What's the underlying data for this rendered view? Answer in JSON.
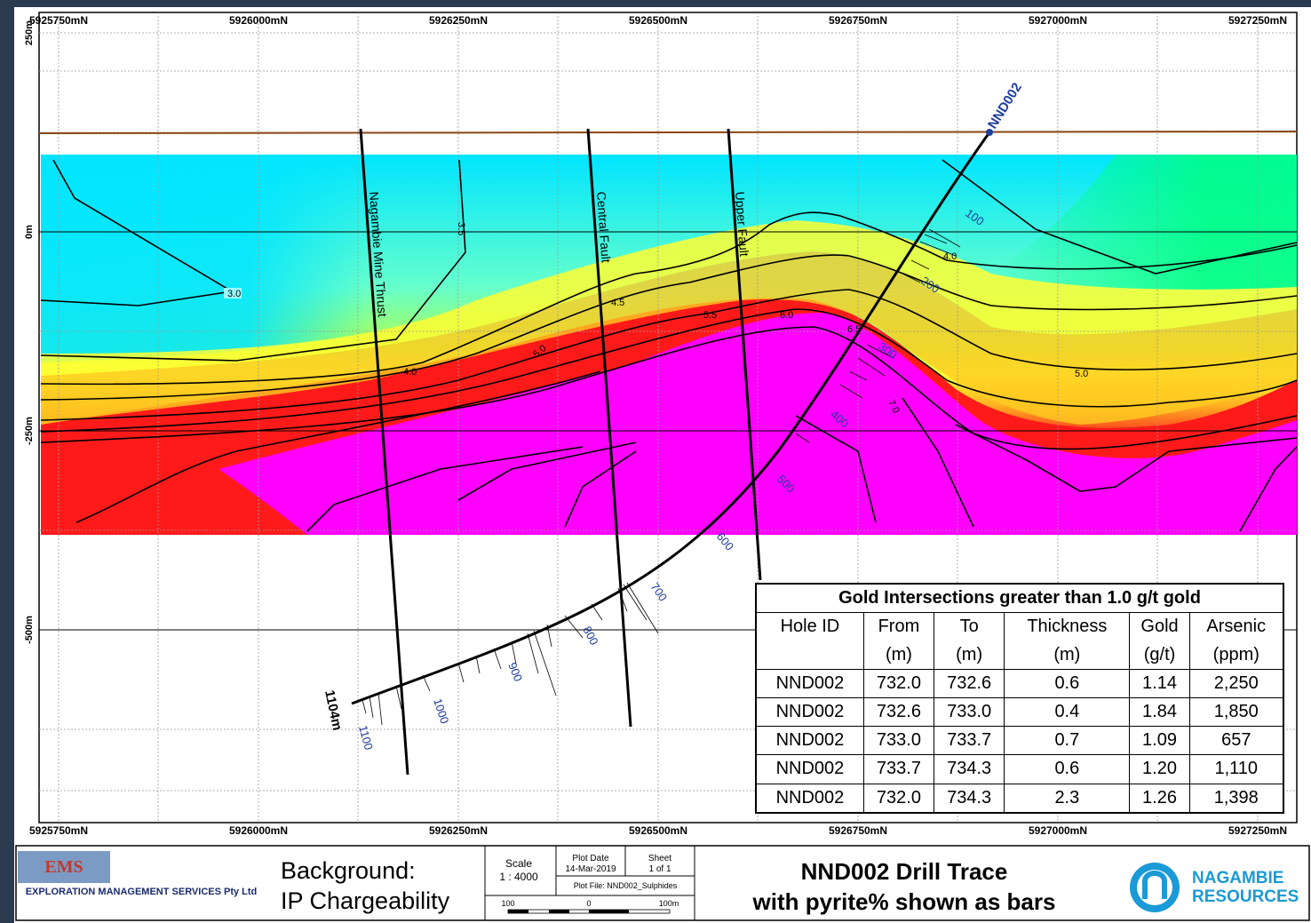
{
  "axis_labels": {
    "northings": [
      "5925750mN",
      "5926000mN",
      "5926250mN",
      "5926500mN",
      "5926750mN",
      "5927000mN",
      "5927250mN"
    ],
    "elevations": [
      "250m",
      "0m",
      "-250m",
      "-500m"
    ]
  },
  "faults": [
    "Nagambie Mine Thrust",
    "Central Fault",
    "Upper Fault"
  ],
  "drillhole": {
    "name": "NND002",
    "depth_label": "1104m",
    "depth_marks": [
      "100",
      "200",
      "300",
      "400",
      "500",
      "600",
      "700",
      "800",
      "900",
      "1000",
      "1100"
    ]
  },
  "contour_labels": [
    "3.0",
    "3.5",
    "4.0",
    "4.0",
    "4.5",
    "5.0",
    "5.0",
    "5.5",
    "6.0",
    "6.5",
    "7.0"
  ],
  "table": {
    "title": "Gold Intersections greater than 1.0 g/t gold",
    "headers": [
      "Hole ID",
      "From",
      "To",
      "Thickness",
      "Gold",
      "Arsenic"
    ],
    "units": [
      "",
      "(m)",
      "(m)",
      "(m)",
      "(g/t)",
      "(ppm)"
    ],
    "rows": [
      [
        "NND002",
        "732.0",
        "732.6",
        "0.6",
        "1.14",
        "2,250"
      ],
      [
        "NND002",
        "732.6",
        "733.0",
        "0.4",
        "1.84",
        "1,850"
      ],
      [
        "NND002",
        "733.0",
        "733.7",
        "0.7",
        "1.09",
        "657"
      ],
      [
        "NND002",
        "733.7",
        "734.3",
        "0.6",
        "1.20",
        "1,110"
      ],
      [
        "NND002",
        "732.0",
        "734.3",
        "2.3",
        "1.26",
        "1,398"
      ]
    ]
  },
  "footer": {
    "company_logo": "EMS",
    "company_name": "EXPLORATION MANAGEMENT SERVICES Pty Ltd",
    "background_line1": "Background:",
    "background_line2": "IP Chargeability",
    "scale_label": "Scale",
    "scale_value": "1 : 4000",
    "plot_date_label": "Plot Date",
    "plot_date": "14-Mar-2019",
    "sheet_label": "Sheet",
    "sheet_value": "1 of 1",
    "plot_file": "Plot File: NND002_Sulphides",
    "scalebar_labels": [
      "100",
      "0",
      "100m"
    ],
    "title_line1": "NND002 Drill Trace",
    "title_line2": "with pyrite% shown as bars",
    "client_name1": "NAGAMBIE",
    "client_name2": "RESOURCES"
  },
  "colors": {
    "accent_blue": "#1f3d9a",
    "topo": "#8b4513",
    "cyan": "#00e5ff",
    "magenta": "#ff00ff",
    "red": "#ff1a1a"
  }
}
